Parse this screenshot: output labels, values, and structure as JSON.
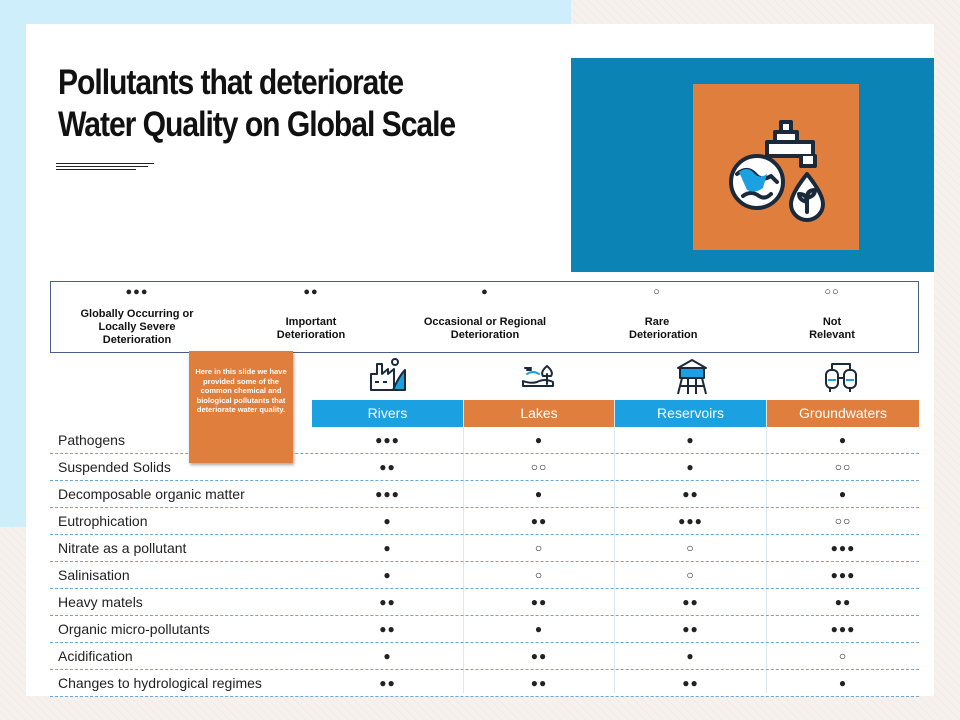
{
  "slide": {
    "title_line1": "Pollutants that deteriorate",
    "title_line2": "Water Quality on Global Scale"
  },
  "legend": [
    {
      "symbol": "●●●",
      "label": "Globally Occurring or Locally Severe Deterioration"
    },
    {
      "symbol": "●●",
      "label": "Important Deterioration"
    },
    {
      "symbol": "●",
      "label": "Occasional or Regional Deterioration"
    },
    {
      "symbol": "○",
      "label": "Rare Deterioration"
    },
    {
      "symbol": "○○",
      "label": "Not Relevant"
    }
  ],
  "note": {
    "text": "Here in this slide we have provided some of the common chemical and biological pollutants that deteriorate water quality."
  },
  "table": {
    "columns": [
      {
        "label": "Rivers",
        "icon": "river-factory-icon",
        "color": "#1ba1e2"
      },
      {
        "label": "Lakes",
        "icon": "lake-tree-icon",
        "color": "#e07f3d"
      },
      {
        "label": "Reservoirs",
        "icon": "water-tower-icon",
        "color": "#1ba1e2"
      },
      {
        "label": "Groundwaters",
        "icon": "groundwater-tanks-icon",
        "color": "#e07f3d"
      }
    ],
    "rows": [
      {
        "label": "Pathogens",
        "values": [
          "●●●",
          "●",
          "●",
          "●"
        ]
      },
      {
        "label": "Suspended Solids",
        "values": [
          "●●",
          "○○",
          "●",
          "○○"
        ]
      },
      {
        "label": "Decomposable organic matter",
        "values": [
          "●●●",
          "●",
          "●●",
          "●"
        ]
      },
      {
        "label": "Eutrophication",
        "values": [
          "●",
          "●●",
          "●●●",
          "○○"
        ]
      },
      {
        "label": "Nitrate as a pollutant",
        "values": [
          "●",
          "○",
          "○",
          "●●●"
        ]
      },
      {
        "label": "Salinisation",
        "values": [
          "●",
          "○",
          "○",
          "●●●"
        ]
      },
      {
        "label": "Heavy matels",
        "values": [
          "●●",
          "●●",
          "●●",
          "●●"
        ]
      },
      {
        "label": "Organic micro-pollutants",
        "values": [
          "●●",
          "●",
          "●●",
          "●●●"
        ]
      },
      {
        "label": "Acidification",
        "values": [
          "●",
          "●●",
          "●",
          "○"
        ]
      },
      {
        "label": "Changes to hydrological regimes",
        "values": [
          "●●",
          "●●",
          "●●",
          "●"
        ]
      }
    ]
  },
  "colors": {
    "accent_blue": "#1ba1e2",
    "accent_orange": "#e07f3d",
    "panel_blue": "#0b84b5"
  },
  "hero_icon": "globe-tap-water-drop-icon"
}
